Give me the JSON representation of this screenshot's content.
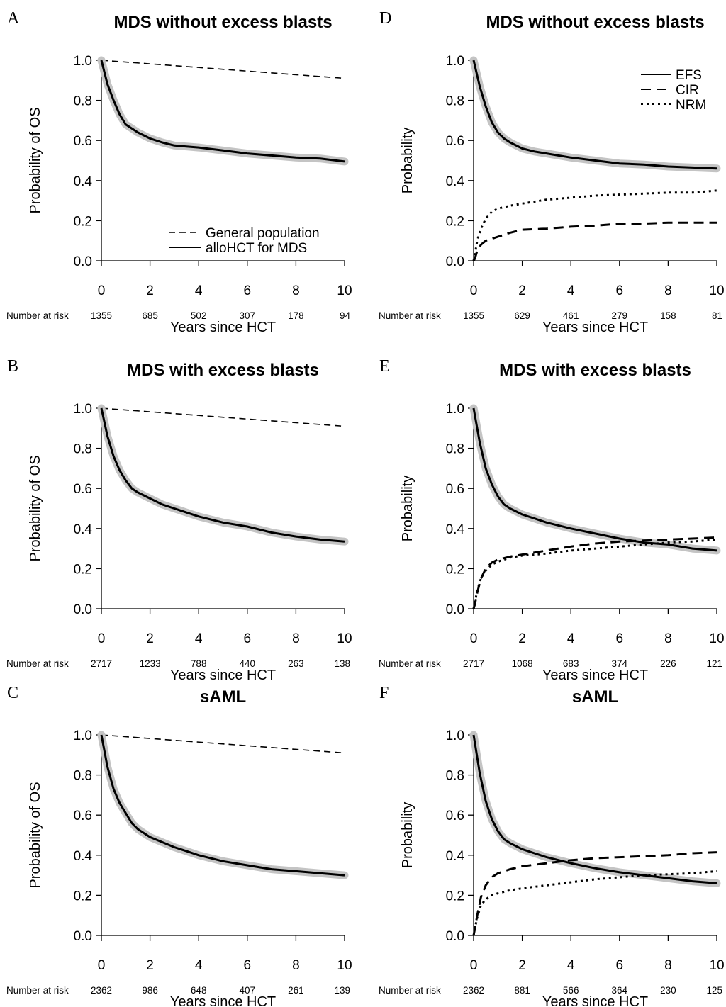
{
  "chart_data": [
    {
      "panel": "A",
      "type": "line",
      "title": "MDS without excess blasts",
      "xlabel": "Years since HCT",
      "ylabel": "Probability of OS",
      "xlim": [
        0,
        10
      ],
      "ylim": [
        0,
        1
      ],
      "xticks": [
        0,
        2,
        4,
        6,
        8,
        10
      ],
      "yticks": [
        0.0,
        0.2,
        0.4,
        0.6,
        0.8,
        1.0
      ],
      "legend_position": "bottom-right",
      "risk_label": "Number at risk",
      "risk": [
        1355,
        685,
        502,
        307,
        178,
        94
      ],
      "series": [
        {
          "name": "General population",
          "style": "dashed",
          "band": false,
          "x": [
            0,
            10
          ],
          "y": [
            1.0,
            0.91
          ]
        },
        {
          "name": "alloHCT for MDS",
          "style": "solid",
          "band": true,
          "x": [
            0,
            0.25,
            0.5,
            0.75,
            1,
            1.25,
            1.5,
            2,
            2.5,
            3,
            3.5,
            4,
            5,
            6,
            7,
            8,
            9,
            10
          ],
          "y": [
            1.0,
            0.88,
            0.8,
            0.73,
            0.68,
            0.66,
            0.64,
            0.61,
            0.59,
            0.575,
            0.57,
            0.565,
            0.55,
            0.535,
            0.525,
            0.515,
            0.51,
            0.495
          ]
        }
      ]
    },
    {
      "panel": "D",
      "type": "line",
      "title": "MDS without excess blasts",
      "xlabel": "Years since HCT",
      "ylabel": "Probability",
      "xlim": [
        0,
        10
      ],
      "ylim": [
        0,
        1
      ],
      "xticks": [
        0,
        2,
        4,
        6,
        8,
        10
      ],
      "yticks": [
        0.0,
        0.2,
        0.4,
        0.6,
        0.8,
        1.0
      ],
      "legend_position": "top-right",
      "risk_label": "Number at risk",
      "risk": [
        1355,
        629,
        461,
        279,
        158,
        81
      ],
      "series": [
        {
          "name": "EFS",
          "style": "solid",
          "band": true,
          "x": [
            0,
            0.25,
            0.5,
            0.75,
            1,
            1.25,
            1.5,
            2,
            2.5,
            3,
            4,
            5,
            6,
            7,
            8,
            9,
            10
          ],
          "y": [
            1.0,
            0.87,
            0.77,
            0.69,
            0.64,
            0.61,
            0.59,
            0.56,
            0.545,
            0.535,
            0.515,
            0.5,
            0.485,
            0.48,
            0.47,
            0.465,
            0.46
          ]
        },
        {
          "name": "CIR",
          "style": "dash",
          "band": false,
          "x": [
            0,
            0.05,
            0.15,
            0.3,
            0.5,
            0.75,
            1,
            1.5,
            2,
            3,
            4,
            5,
            6,
            7,
            8,
            9,
            10
          ],
          "y": [
            0.0,
            0.01,
            0.05,
            0.08,
            0.1,
            0.11,
            0.12,
            0.14,
            0.155,
            0.16,
            0.17,
            0.175,
            0.185,
            0.185,
            0.19,
            0.19,
            0.19
          ]
        },
        {
          "name": "NRM",
          "style": "dotted",
          "band": false,
          "x": [
            0,
            0.05,
            0.15,
            0.3,
            0.5,
            0.75,
            1,
            1.5,
            2,
            2.5,
            3,
            4,
            5,
            6,
            7,
            8,
            9,
            10
          ],
          "y": [
            0.0,
            0.03,
            0.1,
            0.16,
            0.21,
            0.245,
            0.26,
            0.275,
            0.285,
            0.295,
            0.305,
            0.315,
            0.325,
            0.33,
            0.335,
            0.34,
            0.34,
            0.35
          ]
        }
      ]
    },
    {
      "panel": "B",
      "type": "line",
      "title": "MDS with excess blasts",
      "xlabel": "Years since HCT",
      "ylabel": "Probability of OS",
      "xlim": [
        0,
        10
      ],
      "ylim": [
        0,
        1
      ],
      "xticks": [
        0,
        2,
        4,
        6,
        8,
        10
      ],
      "yticks": [
        0.0,
        0.2,
        0.4,
        0.6,
        0.8,
        1.0
      ],
      "risk_label": "Number at risk",
      "risk": [
        2717,
        1233,
        788,
        440,
        263,
        138
      ],
      "series": [
        {
          "name": "General population",
          "style": "dashed",
          "band": false,
          "x": [
            0,
            10
          ],
          "y": [
            1.0,
            0.91
          ]
        },
        {
          "name": "alloHCT for MDS",
          "style": "solid",
          "band": true,
          "x": [
            0,
            0.25,
            0.5,
            0.75,
            1,
            1.25,
            1.5,
            2,
            2.5,
            3,
            3.5,
            4,
            5,
            6,
            7,
            8,
            9,
            10
          ],
          "y": [
            1.0,
            0.86,
            0.76,
            0.69,
            0.64,
            0.6,
            0.58,
            0.55,
            0.52,
            0.5,
            0.48,
            0.46,
            0.43,
            0.41,
            0.38,
            0.36,
            0.345,
            0.335
          ]
        }
      ]
    },
    {
      "panel": "E",
      "type": "line",
      "title": "MDS with excess blasts",
      "xlabel": "Years since HCT",
      "ylabel": "Probability",
      "xlim": [
        0,
        10
      ],
      "ylim": [
        0,
        1
      ],
      "xticks": [
        0,
        2,
        4,
        6,
        8,
        10
      ],
      "yticks": [
        0.0,
        0.2,
        0.4,
        0.6,
        0.8,
        1.0
      ],
      "risk_label": "Number at risk",
      "risk": [
        2717,
        1068,
        683,
        374,
        226,
        121
      ],
      "series": [
        {
          "name": "EFS",
          "style": "solid",
          "band": true,
          "x": [
            0,
            0.25,
            0.5,
            0.75,
            1,
            1.25,
            1.5,
            2,
            2.5,
            3,
            4,
            5,
            6,
            7,
            8,
            9,
            10
          ],
          "y": [
            1.0,
            0.83,
            0.7,
            0.62,
            0.56,
            0.52,
            0.5,
            0.47,
            0.45,
            0.43,
            0.4,
            0.375,
            0.35,
            0.33,
            0.32,
            0.3,
            0.29
          ]
        },
        {
          "name": "CIR",
          "style": "dash",
          "band": false,
          "x": [
            0,
            0.05,
            0.15,
            0.3,
            0.5,
            0.75,
            1,
            1.5,
            2,
            3,
            4,
            5,
            6,
            7,
            8,
            9,
            10
          ],
          "y": [
            0.0,
            0.02,
            0.08,
            0.15,
            0.2,
            0.23,
            0.245,
            0.26,
            0.27,
            0.29,
            0.31,
            0.325,
            0.335,
            0.34,
            0.345,
            0.35,
            0.355
          ]
        },
        {
          "name": "NRM",
          "style": "dotted",
          "band": false,
          "x": [
            0,
            0.05,
            0.15,
            0.3,
            0.5,
            0.75,
            1,
            1.5,
            2,
            3,
            4,
            5,
            6,
            7,
            8,
            9,
            10
          ],
          "y": [
            0.0,
            0.03,
            0.09,
            0.15,
            0.19,
            0.22,
            0.235,
            0.255,
            0.265,
            0.275,
            0.29,
            0.3,
            0.31,
            0.32,
            0.33,
            0.335,
            0.345
          ]
        }
      ]
    },
    {
      "panel": "C",
      "type": "line",
      "title": "sAML",
      "xlabel": "Years since HCT",
      "ylabel": "Probability of OS",
      "xlim": [
        0,
        10
      ],
      "ylim": [
        0,
        1
      ],
      "xticks": [
        0,
        2,
        4,
        6,
        8,
        10
      ],
      "yticks": [
        0.0,
        0.2,
        0.4,
        0.6,
        0.8,
        1.0
      ],
      "risk_label": "Number at risk",
      "risk": [
        2362,
        986,
        648,
        407,
        261,
        139
      ],
      "series": [
        {
          "name": "General population",
          "style": "dashed",
          "band": false,
          "x": [
            0,
            10
          ],
          "y": [
            1.0,
            0.91
          ]
        },
        {
          "name": "alloHCT for MDS",
          "style": "solid",
          "band": true,
          "x": [
            0,
            0.25,
            0.5,
            0.75,
            1,
            1.25,
            1.5,
            2,
            2.5,
            3,
            3.5,
            4,
            5,
            6,
            7,
            8,
            9,
            10
          ],
          "y": [
            1.0,
            0.84,
            0.73,
            0.66,
            0.61,
            0.56,
            0.53,
            0.49,
            0.465,
            0.44,
            0.42,
            0.4,
            0.37,
            0.35,
            0.33,
            0.32,
            0.31,
            0.3
          ]
        }
      ]
    },
    {
      "panel": "F",
      "type": "line",
      "title": "sAML",
      "xlabel": "Years since HCT",
      "ylabel": "Probability",
      "xlim": [
        0,
        10
      ],
      "ylim": [
        0,
        1
      ],
      "xticks": [
        0,
        2,
        4,
        6,
        8,
        10
      ],
      "yticks": [
        0.0,
        0.2,
        0.4,
        0.6,
        0.8,
        1.0
      ],
      "risk_label": "Number at risk",
      "risk": [
        2362,
        881,
        566,
        364,
        230,
        125
      ],
      "series": [
        {
          "name": "EFS",
          "style": "solid",
          "band": true,
          "x": [
            0,
            0.25,
            0.5,
            0.75,
            1,
            1.25,
            1.5,
            2,
            2.5,
            3,
            4,
            5,
            6,
            7,
            8,
            9,
            10
          ],
          "y": [
            1.0,
            0.81,
            0.67,
            0.58,
            0.52,
            0.48,
            0.46,
            0.43,
            0.41,
            0.39,
            0.36,
            0.335,
            0.315,
            0.3,
            0.285,
            0.27,
            0.26
          ]
        },
        {
          "name": "CIR",
          "style": "dash",
          "band": false,
          "x": [
            0,
            0.05,
            0.15,
            0.3,
            0.5,
            0.75,
            1,
            1.5,
            2,
            3,
            4,
            5,
            6,
            7,
            8,
            9,
            10
          ],
          "y": [
            0.0,
            0.03,
            0.1,
            0.19,
            0.25,
            0.29,
            0.31,
            0.33,
            0.345,
            0.36,
            0.375,
            0.385,
            0.39,
            0.395,
            0.4,
            0.41,
            0.415
          ]
        },
        {
          "name": "NRM",
          "style": "dotted",
          "band": false,
          "x": [
            0,
            0.05,
            0.15,
            0.3,
            0.5,
            0.75,
            1,
            1.5,
            2,
            3,
            4,
            5,
            6,
            7,
            8,
            9,
            10
          ],
          "y": [
            0.0,
            0.03,
            0.09,
            0.15,
            0.18,
            0.2,
            0.21,
            0.225,
            0.235,
            0.25,
            0.265,
            0.28,
            0.29,
            0.3,
            0.305,
            0.31,
            0.32
          ]
        }
      ]
    }
  ]
}
